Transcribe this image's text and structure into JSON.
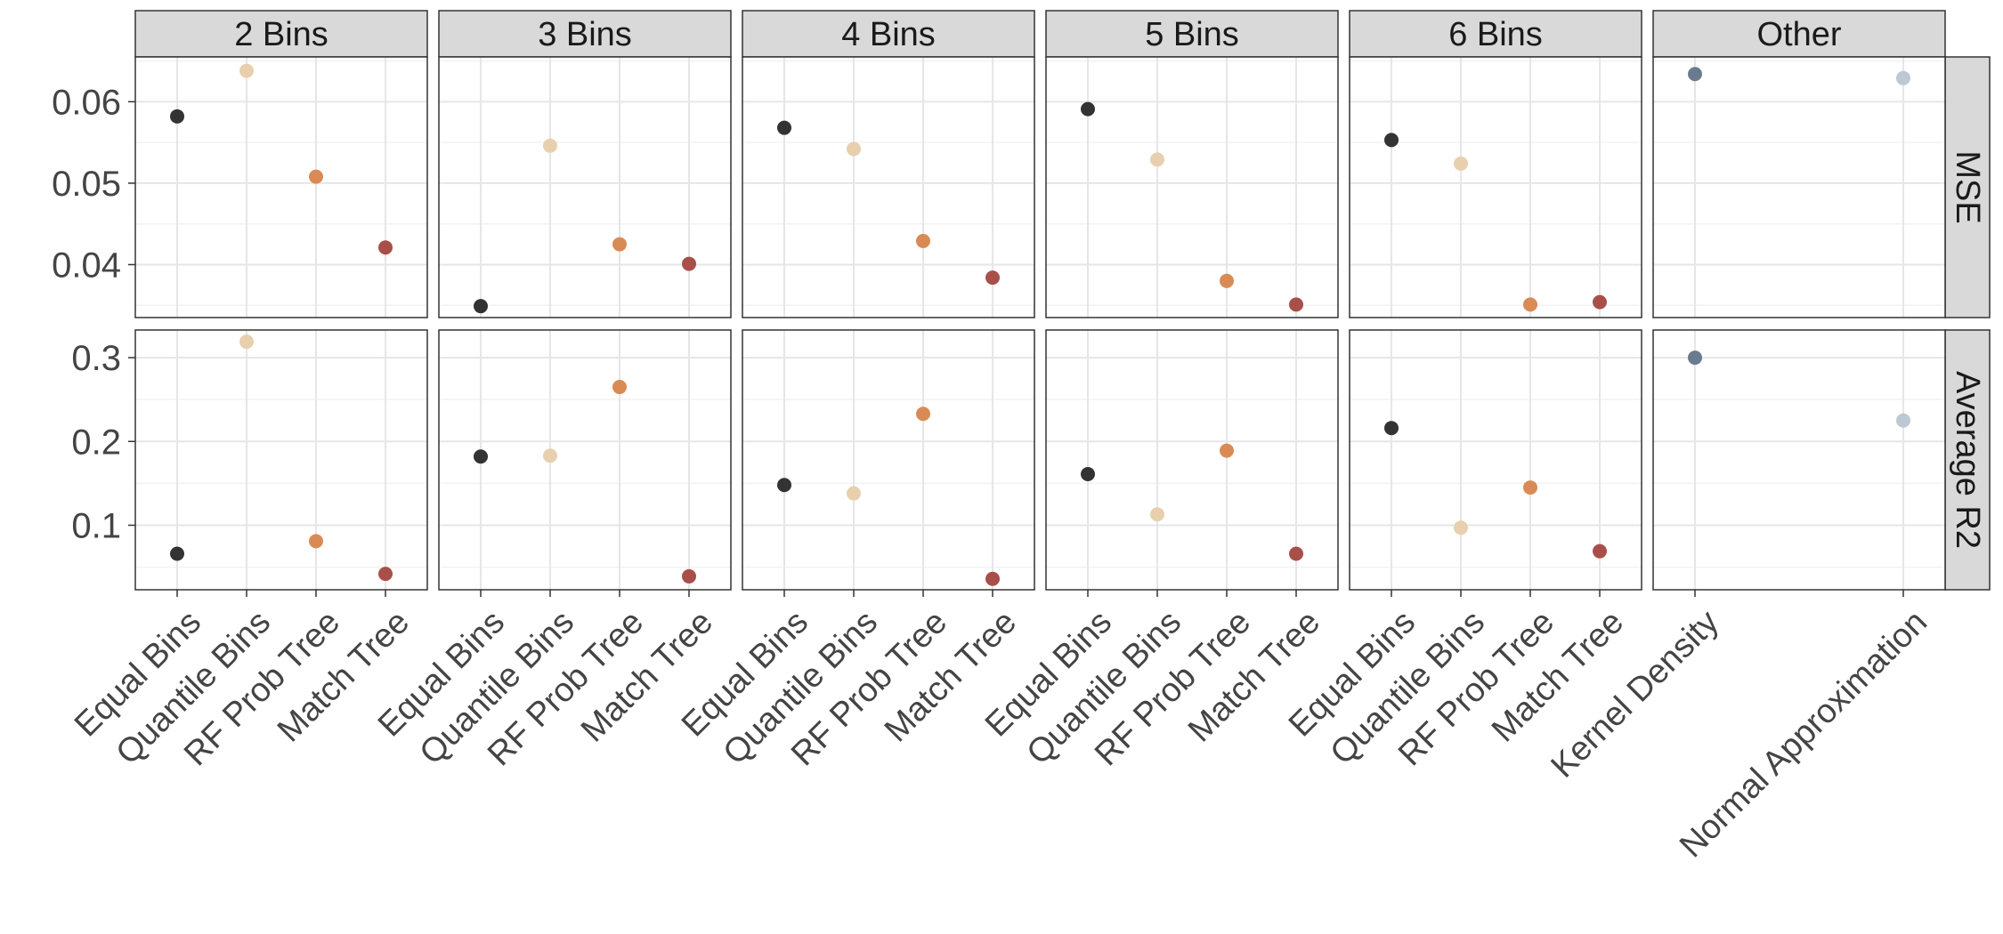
{
  "chart_data": {
    "type": "scatter",
    "facet_columns": [
      "2 Bins",
      "3 Bins",
      "4 Bins",
      "5 Bins",
      "6 Bins",
      "Other"
    ],
    "facet_rows": [
      "MSE",
      "Average R2"
    ],
    "grid": true,
    "rows": [
      {
        "name": "MSE",
        "ylim": [
          0.0335,
          0.0655
        ],
        "yticks": [
          0.04,
          0.05,
          0.06
        ],
        "ytick_labels": [
          "0.04",
          "0.05",
          "0.06"
        ]
      },
      {
        "name": "Average R2",
        "ylim": [
          0.023,
          0.333
        ],
        "yticks": [
          0.1,
          0.2,
          0.3
        ],
        "ytick_labels": [
          "0.1",
          "0.2",
          "0.3"
        ]
      }
    ],
    "columns": [
      {
        "name": "2 Bins",
        "categories": [
          "Equal Bins",
          "Quantile Bins",
          "RF Prob Tree",
          "Match Tree"
        ],
        "colors": [
          "#333333",
          "#e8cfae",
          "#d98b55",
          "#a84f4a"
        ],
        "values": {
          "MSE": [
            0.0582,
            0.0638,
            0.0508,
            0.0421
          ],
          "Average R2": [
            0.066,
            0.319,
            0.081,
            0.042
          ]
        }
      },
      {
        "name": "3 Bins",
        "categories": [
          "Equal Bins",
          "Quantile Bins",
          "RF Prob Tree",
          "Match Tree"
        ],
        "colors": [
          "#333333",
          "#e8cfae",
          "#d98b55",
          "#a84f4a"
        ],
        "values": {
          "MSE": [
            0.0349,
            0.0546,
            0.0425,
            0.0401
          ],
          "Average R2": [
            0.182,
            0.183,
            0.265,
            0.039
          ]
        }
      },
      {
        "name": "4 Bins",
        "categories": [
          "Equal Bins",
          "Quantile Bins",
          "RF Prob Tree",
          "Match Tree"
        ],
        "colors": [
          "#333333",
          "#e8cfae",
          "#d98b55",
          "#a84f4a"
        ],
        "values": {
          "MSE": [
            0.0568,
            0.0542,
            0.0429,
            0.0384
          ],
          "Average R2": [
            0.148,
            0.138,
            0.233,
            0.036
          ]
        }
      },
      {
        "name": "5 Bins",
        "categories": [
          "Equal Bins",
          "Quantile Bins",
          "RF Prob Tree",
          "Match Tree"
        ],
        "colors": [
          "#333333",
          "#e8cfae",
          "#d98b55",
          "#a84f4a"
        ],
        "values": {
          "MSE": [
            0.0591,
            0.0529,
            0.038,
            0.0351
          ],
          "Average R2": [
            0.161,
            0.113,
            0.189,
            0.066
          ]
        }
      },
      {
        "name": "6 Bins",
        "categories": [
          "Equal Bins",
          "Quantile Bins",
          "RF Prob Tree",
          "Match Tree"
        ],
        "colors": [
          "#333333",
          "#e8cfae",
          "#d98b55",
          "#a84f4a"
        ],
        "values": {
          "MSE": [
            0.0553,
            0.0524,
            0.0351,
            0.0354
          ],
          "Average R2": [
            0.216,
            0.097,
            0.145,
            0.069
          ]
        }
      },
      {
        "name": "Other",
        "categories": [
          "Kernel Density",
          "Normal Approximation"
        ],
        "colors": [
          "#6b7b8f",
          "#bcc8d4"
        ],
        "values": {
          "MSE": [
            0.0634,
            0.0629
          ],
          "Average R2": [
            0.3,
            0.225
          ]
        }
      }
    ]
  }
}
